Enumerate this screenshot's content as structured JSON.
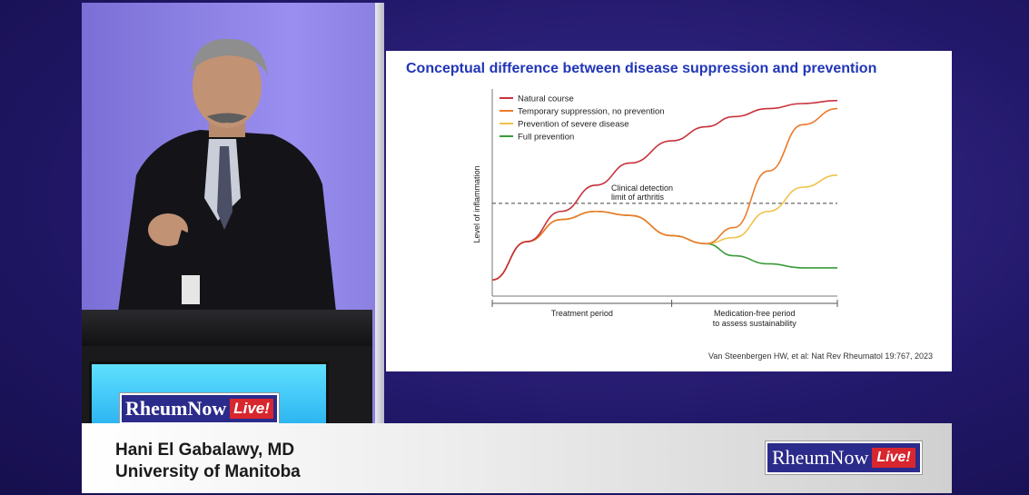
{
  "slide": {
    "title": "Conceptual difference between disease suppression and prevention",
    "citation": "Van Steenbergen HW, et al: Nat Rev Rheumatol 19:767, 2023"
  },
  "chart_data": {
    "type": "line",
    "title": "",
    "ylabel": "Level of inflammation",
    "xlabel": "",
    "x_segments": [
      {
        "label": "Treatment period"
      },
      {
        "label": "Medication-free period to assess sustainability"
      }
    ],
    "threshold": {
      "label": "Clinical detection limit of arthritis",
      "level": 0.46
    },
    "x": [
      0,
      0.1,
      0.2,
      0.3,
      0.4,
      0.52,
      0.62,
      0.7,
      0.8,
      0.9,
      1.0
    ],
    "series": [
      {
        "name": "Natural course",
        "color": "#c8323c",
        "values": [
          0.08,
          0.27,
          0.42,
          0.55,
          0.66,
          0.77,
          0.84,
          0.89,
          0.93,
          0.955,
          0.97
        ]
      },
      {
        "name": "Temporary suppression, no prevention",
        "color": "#ec7a2a",
        "values": [
          0.08,
          0.27,
          0.38,
          0.42,
          0.4,
          0.3,
          0.26,
          0.34,
          0.62,
          0.85,
          0.93
        ]
      },
      {
        "name": "Prevention of severe disease",
        "color": "#f0c24a",
        "values": [
          0.08,
          0.27,
          0.38,
          0.42,
          0.4,
          0.3,
          0.26,
          0.29,
          0.42,
          0.54,
          0.6
        ]
      },
      {
        "name": "Full prevention",
        "color": "#3a9b3a",
        "values": [
          0.08,
          0.27,
          0.38,
          0.42,
          0.4,
          0.3,
          0.26,
          0.2,
          0.16,
          0.14,
          0.14
        ]
      }
    ],
    "legend_position": "top-left",
    "grid": false
  },
  "lower_third": {
    "name": "Hani El Gabalawy, MD",
    "affiliation": "University of Manitoba"
  },
  "branding": {
    "brand": "RheumNow",
    "live": "Live!"
  }
}
